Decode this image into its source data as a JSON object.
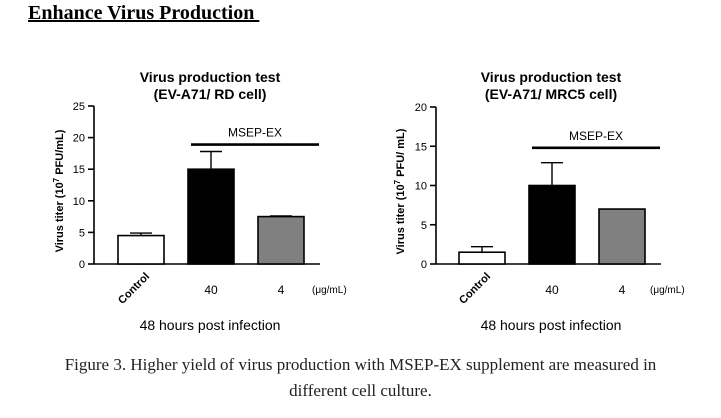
{
  "heading": "Enhance Virus Production ",
  "caption": {
    "line1": "Figure 3. Higher yield of virus production with MSEP-EX supplement are measured in",
    "line2": "different cell culture."
  },
  "chart_data": [
    {
      "type": "bar",
      "title": "Virus production test",
      "subtitle": "(EV-A71/ RD cell)",
      "ylabel": "Virus titer (10",
      "ylabel_sup": "7",
      "ylabel_tail": " PFU/mL)",
      "xlabel": "48 hours post infection",
      "unit_label": "(μg/mL)",
      "categories": [
        "Control",
        "40",
        "4"
      ],
      "values": [
        4.5,
        15.0,
        7.5
      ],
      "errors": [
        0.4,
        2.8,
        0.1
      ],
      "bar_colors": [
        "#ffffff",
        "#000000",
        "#808080"
      ],
      "ylim": [
        0,
        25
      ],
      "yticks": [
        0,
        5,
        10,
        15,
        20,
        25
      ],
      "bracket_label": "MSEP-EX",
      "bracket_value": 18.9
    },
    {
      "type": "bar",
      "title": "Virus production test",
      "subtitle": "(EV-A71/ MRC5 cell)",
      "ylabel": "Virus titer (10",
      "ylabel_sup": "7",
      "ylabel_tail": " PFU/ mL)",
      "xlabel": "48 hours post infection",
      "unit_label": "(μg/mL)",
      "categories": [
        "Control",
        "40",
        "4"
      ],
      "values": [
        1.5,
        10.0,
        7.0
      ],
      "errors": [
        0.7,
        2.9,
        0.0
      ],
      "bar_colors": [
        "#ffffff",
        "#000000",
        "#808080"
      ],
      "ylim": [
        0,
        20
      ],
      "yticks": [
        0,
        5,
        10,
        15,
        20
      ],
      "bracket_label": "MSEP-EX",
      "bracket_value": 14.8
    }
  ]
}
